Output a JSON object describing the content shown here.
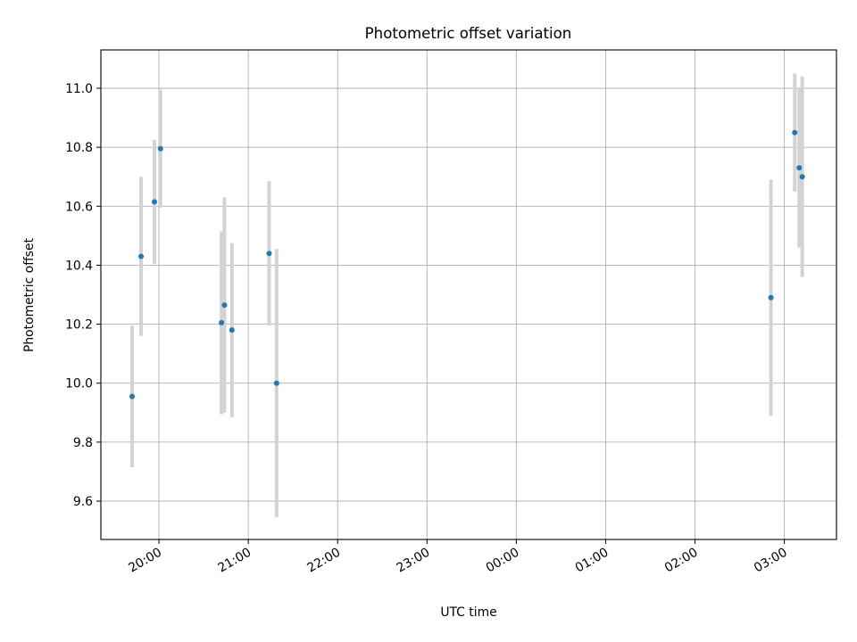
{
  "chart_data": {
    "type": "scatter",
    "title": "Photometric offset variation",
    "xlabel": "UTC time",
    "ylabel": "Photometric offset",
    "x_ticks": [
      "20:00",
      "21:00",
      "22:00",
      "23:00",
      "00:00",
      "01:00",
      "02:00",
      "03:00"
    ],
    "y_ticks": [
      "9.6",
      "9.8",
      "10.0",
      "10.2",
      "10.4",
      "10.6",
      "10.8",
      "11.0"
    ],
    "xlim": [
      "19:21",
      "03:35"
    ],
    "ylim": [
      9.47,
      11.13
    ],
    "grid": true,
    "marker_color": "#1f77b4",
    "errorbar_color": "#d3d3d3",
    "points": [
      {
        "x": "19:42",
        "y": 9.955,
        "err": 0.24
      },
      {
        "x": "19:48",
        "y": 10.43,
        "err": 0.27
      },
      {
        "x": "19:57",
        "y": 10.615,
        "err": 0.21
      },
      {
        "x": "20:01",
        "y": 10.795,
        "err": 0.2
      },
      {
        "x": "20:42",
        "y": 10.205,
        "err": 0.31
      },
      {
        "x": "20:44",
        "y": 10.265,
        "err": 0.365
      },
      {
        "x": "20:49",
        "y": 10.18,
        "err": 0.295
      },
      {
        "x": "21:14",
        "y": 10.44,
        "err": 0.245
      },
      {
        "x": "21:19",
        "y": 10.0,
        "err": 0.455
      },
      {
        "x": "02:51",
        "y": 10.29,
        "err": 0.4
      },
      {
        "x": "03:07",
        "y": 10.85,
        "err": 0.2
      },
      {
        "x": "03:10",
        "y": 10.73,
        "err": 0.27
      },
      {
        "x": "03:12",
        "y": 10.7,
        "err": 0.34
      }
    ]
  }
}
